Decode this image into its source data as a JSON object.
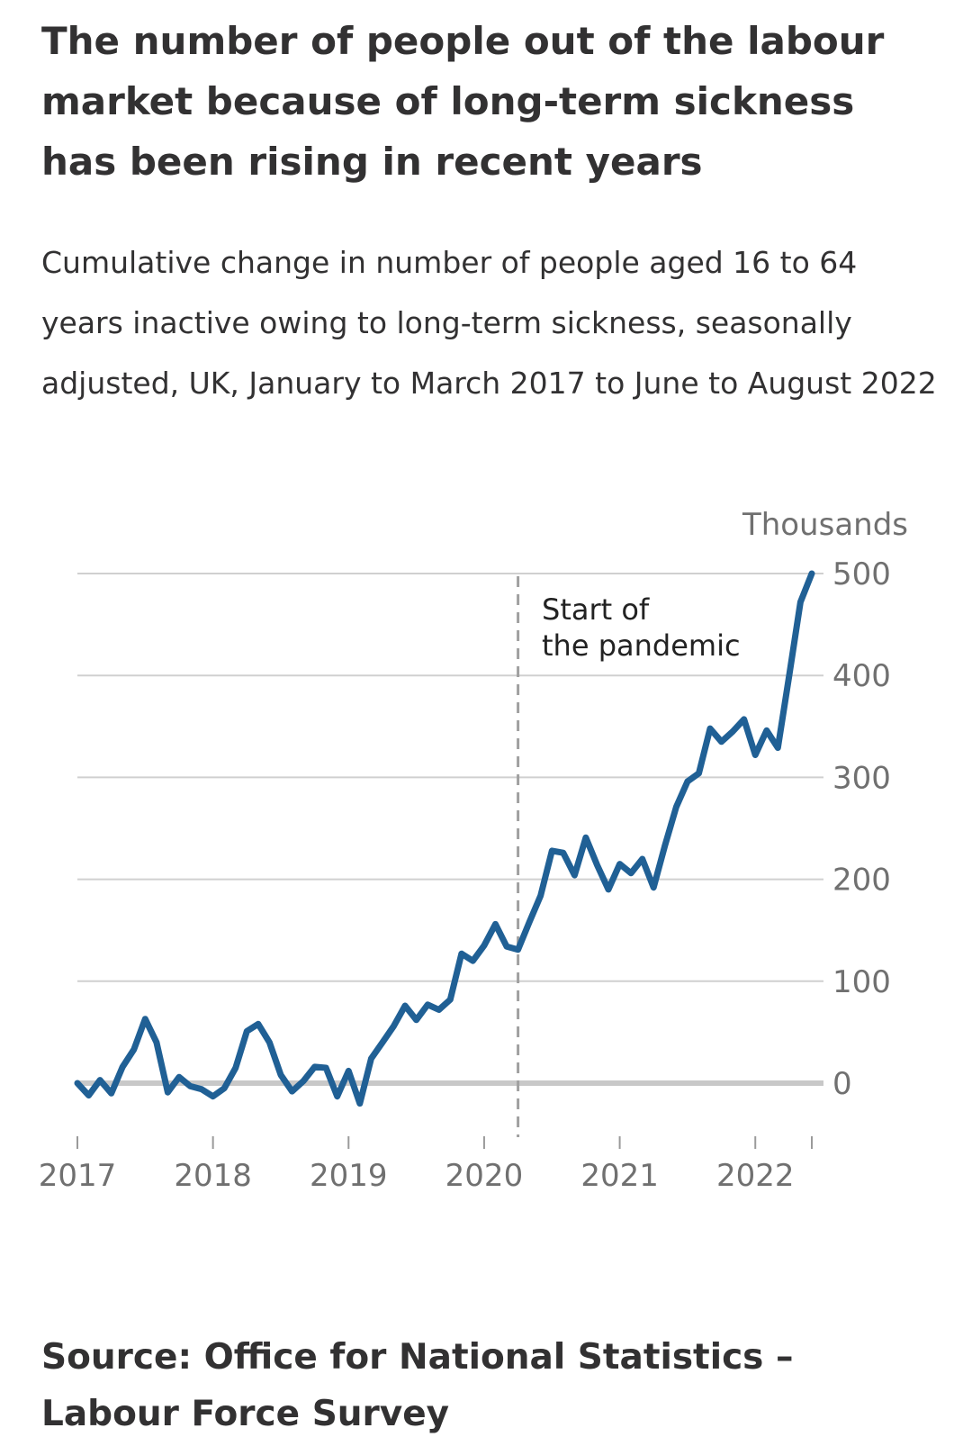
{
  "title": "The number of people out of the labour market because of long-term sickness has been rising in recent years",
  "subtitle": "Cumulative change in number of people aged 16 to 64 years inactive owing to long-term sickness, seasonally adjusted, UK, January to March 2017 to June to August 2022",
  "source": "Source: Office for National Statistics – Labour Force Survey",
  "colors": {
    "line": "#206095",
    "grid": "#d0d0d0",
    "zero": "#c8c8c8",
    "text": "#323132",
    "axis_text": "#707070",
    "annotation_line": "#a0a0a0"
  },
  "chart_data": {
    "type": "line",
    "title": "The number of people out of the labour market because of long-term sickness has been rising in recent years",
    "ylabel": "Thousands",
    "xlabel": "",
    "x_ticks": [
      "2017",
      "2018",
      "2019",
      "2020",
      "2021",
      "2022"
    ],
    "y_ticks": [
      "0",
      "100",
      "200",
      "300",
      "400",
      "500"
    ],
    "ylim": [
      -50,
      500
    ],
    "xlim": [
      "2017-01",
      "2022-06"
    ],
    "grid": true,
    "x": [
      "2017-01",
      "2017-02",
      "2017-03",
      "2017-04",
      "2017-05",
      "2017-06",
      "2017-07",
      "2017-08",
      "2017-09",
      "2017-10",
      "2017-11",
      "2017-12",
      "2018-01",
      "2018-02",
      "2018-03",
      "2018-04",
      "2018-05",
      "2018-06",
      "2018-07",
      "2018-08",
      "2018-09",
      "2018-10",
      "2018-11",
      "2018-12",
      "2019-01",
      "2019-02",
      "2019-03",
      "2019-04",
      "2019-05",
      "2019-06",
      "2019-07",
      "2019-08",
      "2019-09",
      "2019-10",
      "2019-11",
      "2019-12",
      "2020-01",
      "2020-02",
      "2020-03",
      "2020-04",
      "2020-05",
      "2020-06",
      "2020-07",
      "2020-08",
      "2020-09",
      "2020-10",
      "2020-11",
      "2020-12",
      "2021-01",
      "2021-02",
      "2021-03",
      "2021-04",
      "2021-05",
      "2021-06",
      "2021-07",
      "2021-08",
      "2021-09",
      "2021-10",
      "2021-11",
      "2021-12",
      "2022-01",
      "2022-02",
      "2022-03",
      "2022-04",
      "2022-05",
      "2022-06"
    ],
    "series": [
      {
        "values": [
          0,
          -12,
          3,
          -10,
          16,
          33,
          63,
          40,
          -9,
          6,
          -3,
          -6,
          -13,
          -5,
          15,
          51,
          58,
          40,
          8,
          -8,
          2,
          16,
          15,
          -13,
          12,
          -20,
          24,
          40,
          56,
          76,
          62,
          77,
          72,
          82,
          127,
          120,
          135,
          156,
          134,
          131,
          158,
          184,
          228,
          226,
          204,
          241,
          214,
          190,
          215,
          206,
          220,
          192,
          233,
          271,
          296,
          304,
          348,
          335,
          345,
          357,
          322,
          346,
          329,
          400,
          472,
          500
        ]
      }
    ],
    "annotations": [
      {
        "x": "2020-04",
        "label_lines": [
          "Start of",
          "the pandemic"
        ]
      }
    ]
  }
}
